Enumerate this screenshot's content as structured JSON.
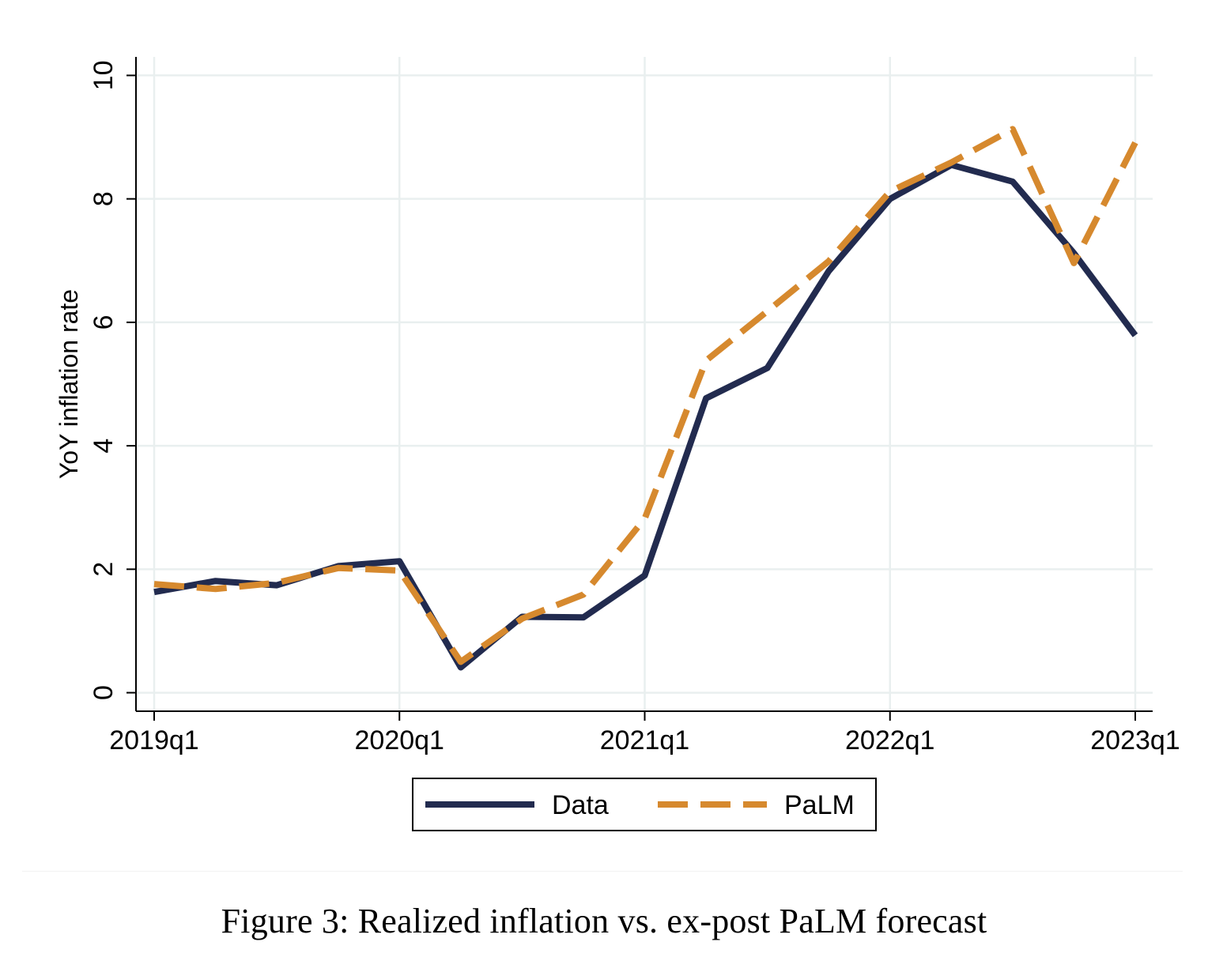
{
  "caption": "Figure 3: Realized inflation vs. ex-post PaLM forecast",
  "colors": {
    "data_line": "#222b4f",
    "palm_line": "#d6892e",
    "grid": "#e9efef",
    "axis": "#000000"
  },
  "chart_data": {
    "type": "line",
    "title": "",
    "xlabel": "",
    "ylabel": "YoY inflation rate",
    "x": [
      "2019q1",
      "2019q2",
      "2019q3",
      "2019q4",
      "2020q1",
      "2020q2",
      "2020q3",
      "2020q4",
      "2021q1",
      "2021q2",
      "2021q3",
      "2021q4",
      "2022q1",
      "2022q2",
      "2022q3",
      "2022q4",
      "2023q1"
    ],
    "x_tick_labels": [
      "2019q1",
      "2020q1",
      "2021q1",
      "2022q1",
      "2023q1"
    ],
    "y_ticks": [
      0,
      2,
      4,
      6,
      8,
      10
    ],
    "ylim": [
      -0.3,
      10.3
    ],
    "grid": true,
    "legend_position": "bottom",
    "series": [
      {
        "name": "Data",
        "style": "solid",
        "color": "#222b4f",
        "values": [
          1.63,
          1.81,
          1.74,
          2.05,
          2.13,
          0.41,
          1.23,
          1.22,
          1.9,
          4.77,
          5.26,
          6.83,
          8.0,
          8.55,
          8.28,
          7.12,
          5.79
        ]
      },
      {
        "name": "PaLM",
        "style": "dashed",
        "color": "#d6892e",
        "values": [
          1.76,
          1.68,
          1.78,
          2.02,
          1.98,
          0.5,
          1.2,
          1.59,
          2.82,
          5.38,
          6.18,
          6.99,
          8.12,
          8.59,
          9.13,
          6.96,
          8.91
        ]
      }
    ]
  }
}
